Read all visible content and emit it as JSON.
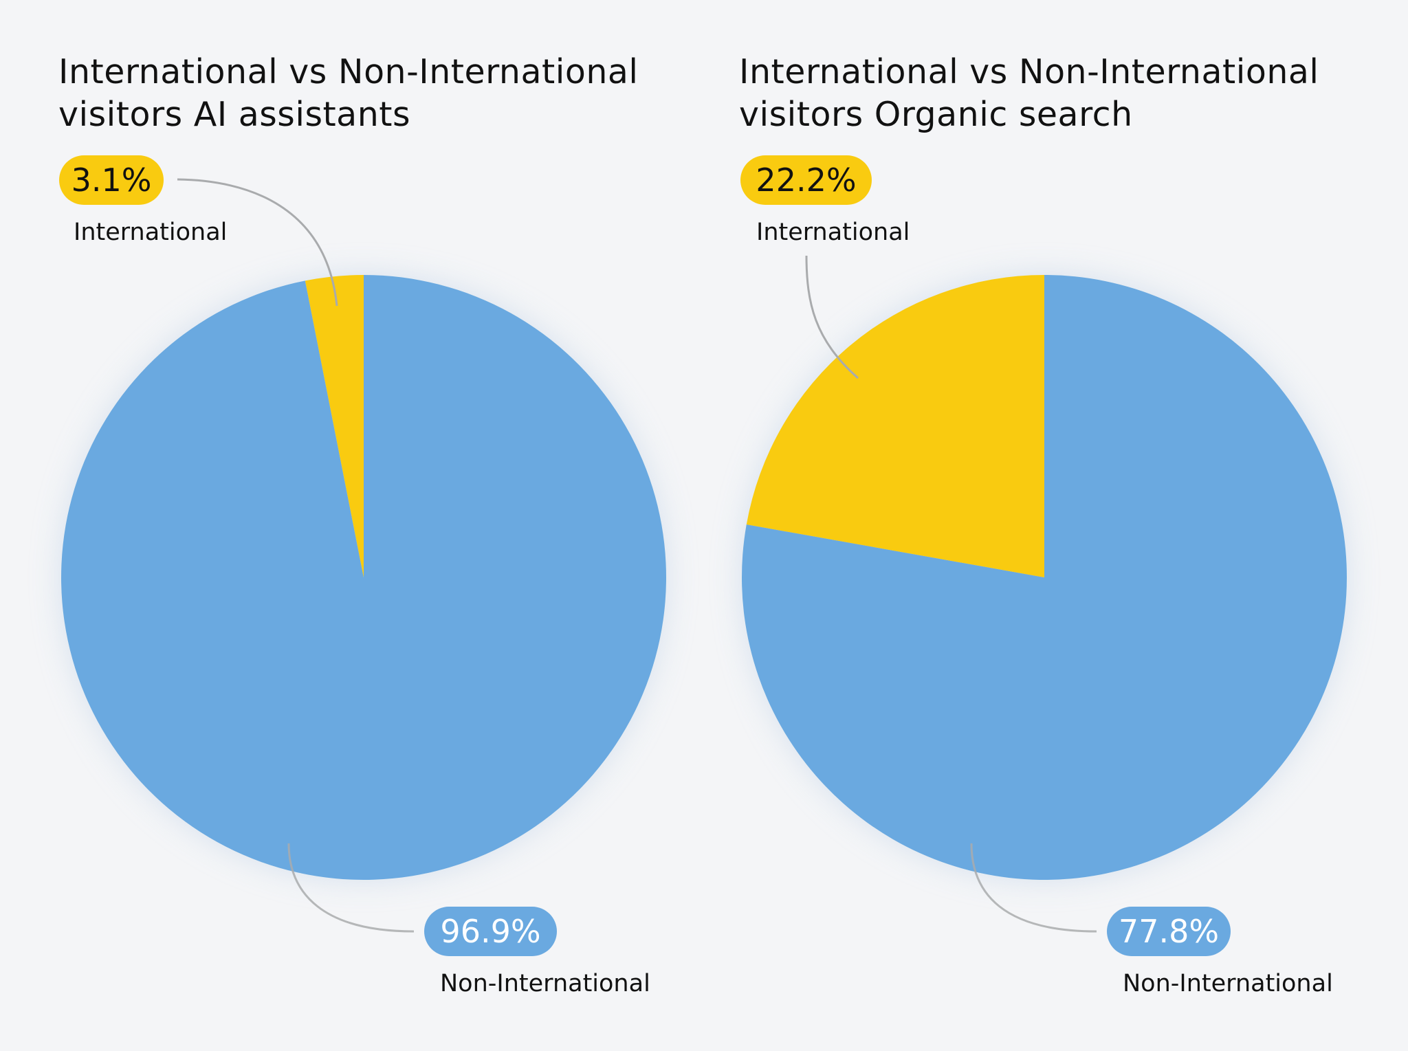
{
  "colors": {
    "international": "#f9cb10",
    "non_international": "#6aa9e0",
    "background": "#f4f5f7",
    "leader": "#a9abad"
  },
  "charts": [
    {
      "title": "International vs Non-International visitors AI assistants",
      "international": {
        "value": "3.1%",
        "label": "International"
      },
      "non_international": {
        "value": "96.9%",
        "label": "Non-International"
      }
    },
    {
      "title": "International vs Non-International visitors Organic search",
      "international": {
        "value": "22.2%",
        "label": "International"
      },
      "non_international": {
        "value": "77.8%",
        "label": "Non-International"
      }
    }
  ],
  "chart_data": [
    {
      "type": "pie",
      "title": "International vs Non-International visitors AI assistants",
      "categories": [
        "International",
        "Non-International"
      ],
      "values": [
        3.1,
        96.9
      ],
      "colors": [
        "#f9cb10",
        "#6aa9e0"
      ]
    },
    {
      "type": "pie",
      "title": "International vs Non-International visitors Organic search",
      "categories": [
        "International",
        "Non-International"
      ],
      "values": [
        22.2,
        77.8
      ],
      "colors": [
        "#f9cb10",
        "#6aa9e0"
      ]
    }
  ]
}
